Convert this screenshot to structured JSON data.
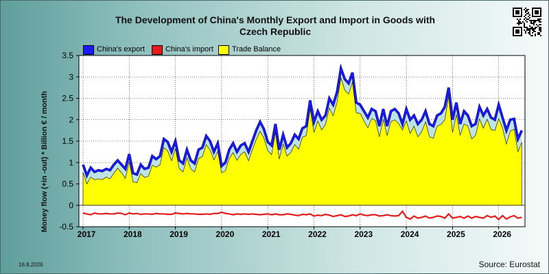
{
  "title_line1": "The Development of China's Monthly Export and Import in Goods with",
  "title_line2": "Czech Republic",
  "date_stamp": "16.8.2026",
  "source": "Source: Eurostat",
  "qr_icon": "qr-code-icon",
  "colors": {
    "export": "#1a1aff",
    "import": "#e31b1b",
    "balance": "#ffff00",
    "gap": "#bfe3e3",
    "plot_bg": "#ffffff"
  },
  "chart_data": {
    "type": "area",
    "title": "The Development of China's Monthly Export and Import in Goods with Czech Republic",
    "ylabel": "Money flow (+in -out) * Billion € / month",
    "xlabel": "",
    "ylim": [
      -0.5,
      3.5
    ],
    "y_ticks": [
      -0.5,
      0,
      0.5,
      1,
      1.5,
      2,
      2.5,
      3,
      3.5
    ],
    "y_tick_labels": [
      "-0.5",
      "0",
      "0.5",
      "1",
      "1.5",
      "2",
      "2.5",
      "3",
      "3.5"
    ],
    "x_ticks": [
      2017,
      2018,
      2019,
      2020,
      2021,
      2022,
      2023,
      2024,
      2025,
      2026
    ],
    "x_tick_labels": [
      "2017",
      "2018",
      "2019",
      "2020",
      "2021",
      "2022",
      "2023",
      "2024",
      "2025",
      "2026"
    ],
    "x_start": "2017-01",
    "grid": true,
    "legend_position": "top-left",
    "series": [
      {
        "name": "China's export",
        "values": [
          0.95,
          0.7,
          0.88,
          0.78,
          0.82,
          0.8,
          0.85,
          0.82,
          0.95,
          1.05,
          0.95,
          0.85,
          1.2,
          0.75,
          0.72,
          0.95,
          0.85,
          0.88,
          1.15,
          1.08,
          1.15,
          1.55,
          1.48,
          1.25,
          1.5,
          1.05,
          0.98,
          1.3,
          1.05,
          0.98,
          1.3,
          1.35,
          1.62,
          1.5,
          1.25,
          1.45,
          0.92,
          1.0,
          1.3,
          1.45,
          1.25,
          1.4,
          1.45,
          1.25,
          1.5,
          1.75,
          1.95,
          1.78,
          1.48,
          1.4,
          1.9,
          1.3,
          1.65,
          1.35,
          1.45,
          1.65,
          1.55,
          1.8,
          1.85,
          2.45,
          1.95,
          2.2,
          2.0,
          2.1,
          2.5,
          2.35,
          2.65,
          3.2,
          2.95,
          2.85,
          3.1,
          2.4,
          2.35,
          2.2,
          2.05,
          2.25,
          2.2,
          1.85,
          2.25,
          1.85,
          2.2,
          2.25,
          2.15,
          1.9,
          2.25,
          2.0,
          2.1,
          1.9,
          2.0,
          2.2,
          1.9,
          1.85,
          2.1,
          2.15,
          2.3,
          2.75,
          2.0,
          2.4,
          1.9,
          2.2,
          2.1,
          1.85,
          1.9,
          2.3,
          2.1,
          2.25,
          2.05,
          2.0,
          2.35,
          2.05,
          1.75,
          2.0,
          2.02,
          1.55,
          1.75
        ],
        "color": "#1a1aff"
      },
      {
        "name": "China's import",
        "values": [
          -0.18,
          -0.2,
          -0.22,
          -0.18,
          -0.2,
          -0.2,
          -0.19,
          -0.2,
          -0.2,
          -0.18,
          -0.19,
          -0.22,
          -0.18,
          -0.2,
          -0.19,
          -0.21,
          -0.2,
          -0.2,
          -0.21,
          -0.19,
          -0.2,
          -0.2,
          -0.21,
          -0.21,
          -0.18,
          -0.19,
          -0.2,
          -0.19,
          -0.2,
          -0.2,
          -0.21,
          -0.21,
          -0.2,
          -0.21,
          -0.19,
          -0.19,
          -0.16,
          -0.19,
          -0.2,
          -0.22,
          -0.2,
          -0.21,
          -0.2,
          -0.21,
          -0.2,
          -0.21,
          -0.22,
          -0.21,
          -0.2,
          -0.22,
          -0.2,
          -0.22,
          -0.22,
          -0.2,
          -0.21,
          -0.23,
          -0.24,
          -0.21,
          -0.22,
          -0.2,
          -0.25,
          -0.23,
          -0.24,
          -0.21,
          -0.23,
          -0.26,
          -0.24,
          -0.22,
          -0.26,
          -0.25,
          -0.22,
          -0.24,
          -0.2,
          -0.23,
          -0.24,
          -0.22,
          -0.22,
          -0.25,
          -0.24,
          -0.22,
          -0.24,
          -0.25,
          -0.24,
          -0.14,
          -0.28,
          -0.32,
          -0.25,
          -0.3,
          -0.28,
          -0.25,
          -0.3,
          -0.28,
          -0.25,
          -0.26,
          -0.3,
          -0.2,
          -0.3,
          -0.28,
          -0.26,
          -0.3,
          -0.25,
          -0.3,
          -0.26,
          -0.28,
          -0.3,
          -0.24,
          -0.28,
          -0.25,
          -0.33,
          -0.24,
          -0.32,
          -0.27,
          -0.24,
          -0.3,
          -0.28
        ],
        "color": "#e31b1b"
      },
      {
        "name": "Trade Balance",
        "values": [
          0.77,
          0.5,
          0.66,
          0.6,
          0.62,
          0.6,
          0.66,
          0.62,
          0.75,
          0.87,
          0.76,
          0.63,
          1.02,
          0.55,
          0.53,
          0.74,
          0.65,
          0.68,
          0.94,
          0.89,
          0.95,
          1.35,
          1.27,
          1.04,
          1.32,
          0.86,
          0.78,
          1.11,
          0.85,
          0.78,
          1.09,
          1.14,
          1.42,
          1.29,
          1.06,
          1.26,
          0.76,
          0.81,
          1.1,
          1.23,
          1.05,
          1.19,
          1.25,
          1.04,
          1.3,
          1.54,
          1.73,
          1.57,
          1.28,
          1.18,
          1.7,
          1.08,
          1.43,
          1.15,
          1.24,
          1.42,
          1.31,
          1.59,
          1.63,
          2.25,
          1.7,
          1.97,
          1.76,
          1.89,
          2.27,
          2.09,
          2.41,
          2.98,
          2.69,
          2.6,
          2.88,
          2.16,
          2.15,
          1.97,
          1.81,
          2.03,
          1.98,
          1.6,
          2.01,
          1.63,
          1.96,
          2.0,
          1.91,
          1.76,
          1.97,
          1.68,
          1.85,
          1.6,
          1.72,
          1.95,
          1.6,
          1.57,
          1.85,
          1.89,
          2.0,
          2.55,
          1.7,
          2.12,
          1.64,
          1.9,
          1.85,
          1.55,
          1.64,
          2.02,
          1.8,
          2.01,
          1.77,
          1.75,
          2.02,
          1.81,
          1.43,
          1.73,
          1.78,
          1.25,
          1.47
        ],
        "color": "#ffff00"
      }
    ]
  },
  "legend": [
    {
      "label": "China's export",
      "color": "#1a1aff"
    },
    {
      "label": "China's import",
      "color": "#e31b1b"
    },
    {
      "label": "Trade Balance",
      "color": "#ffff00"
    }
  ]
}
